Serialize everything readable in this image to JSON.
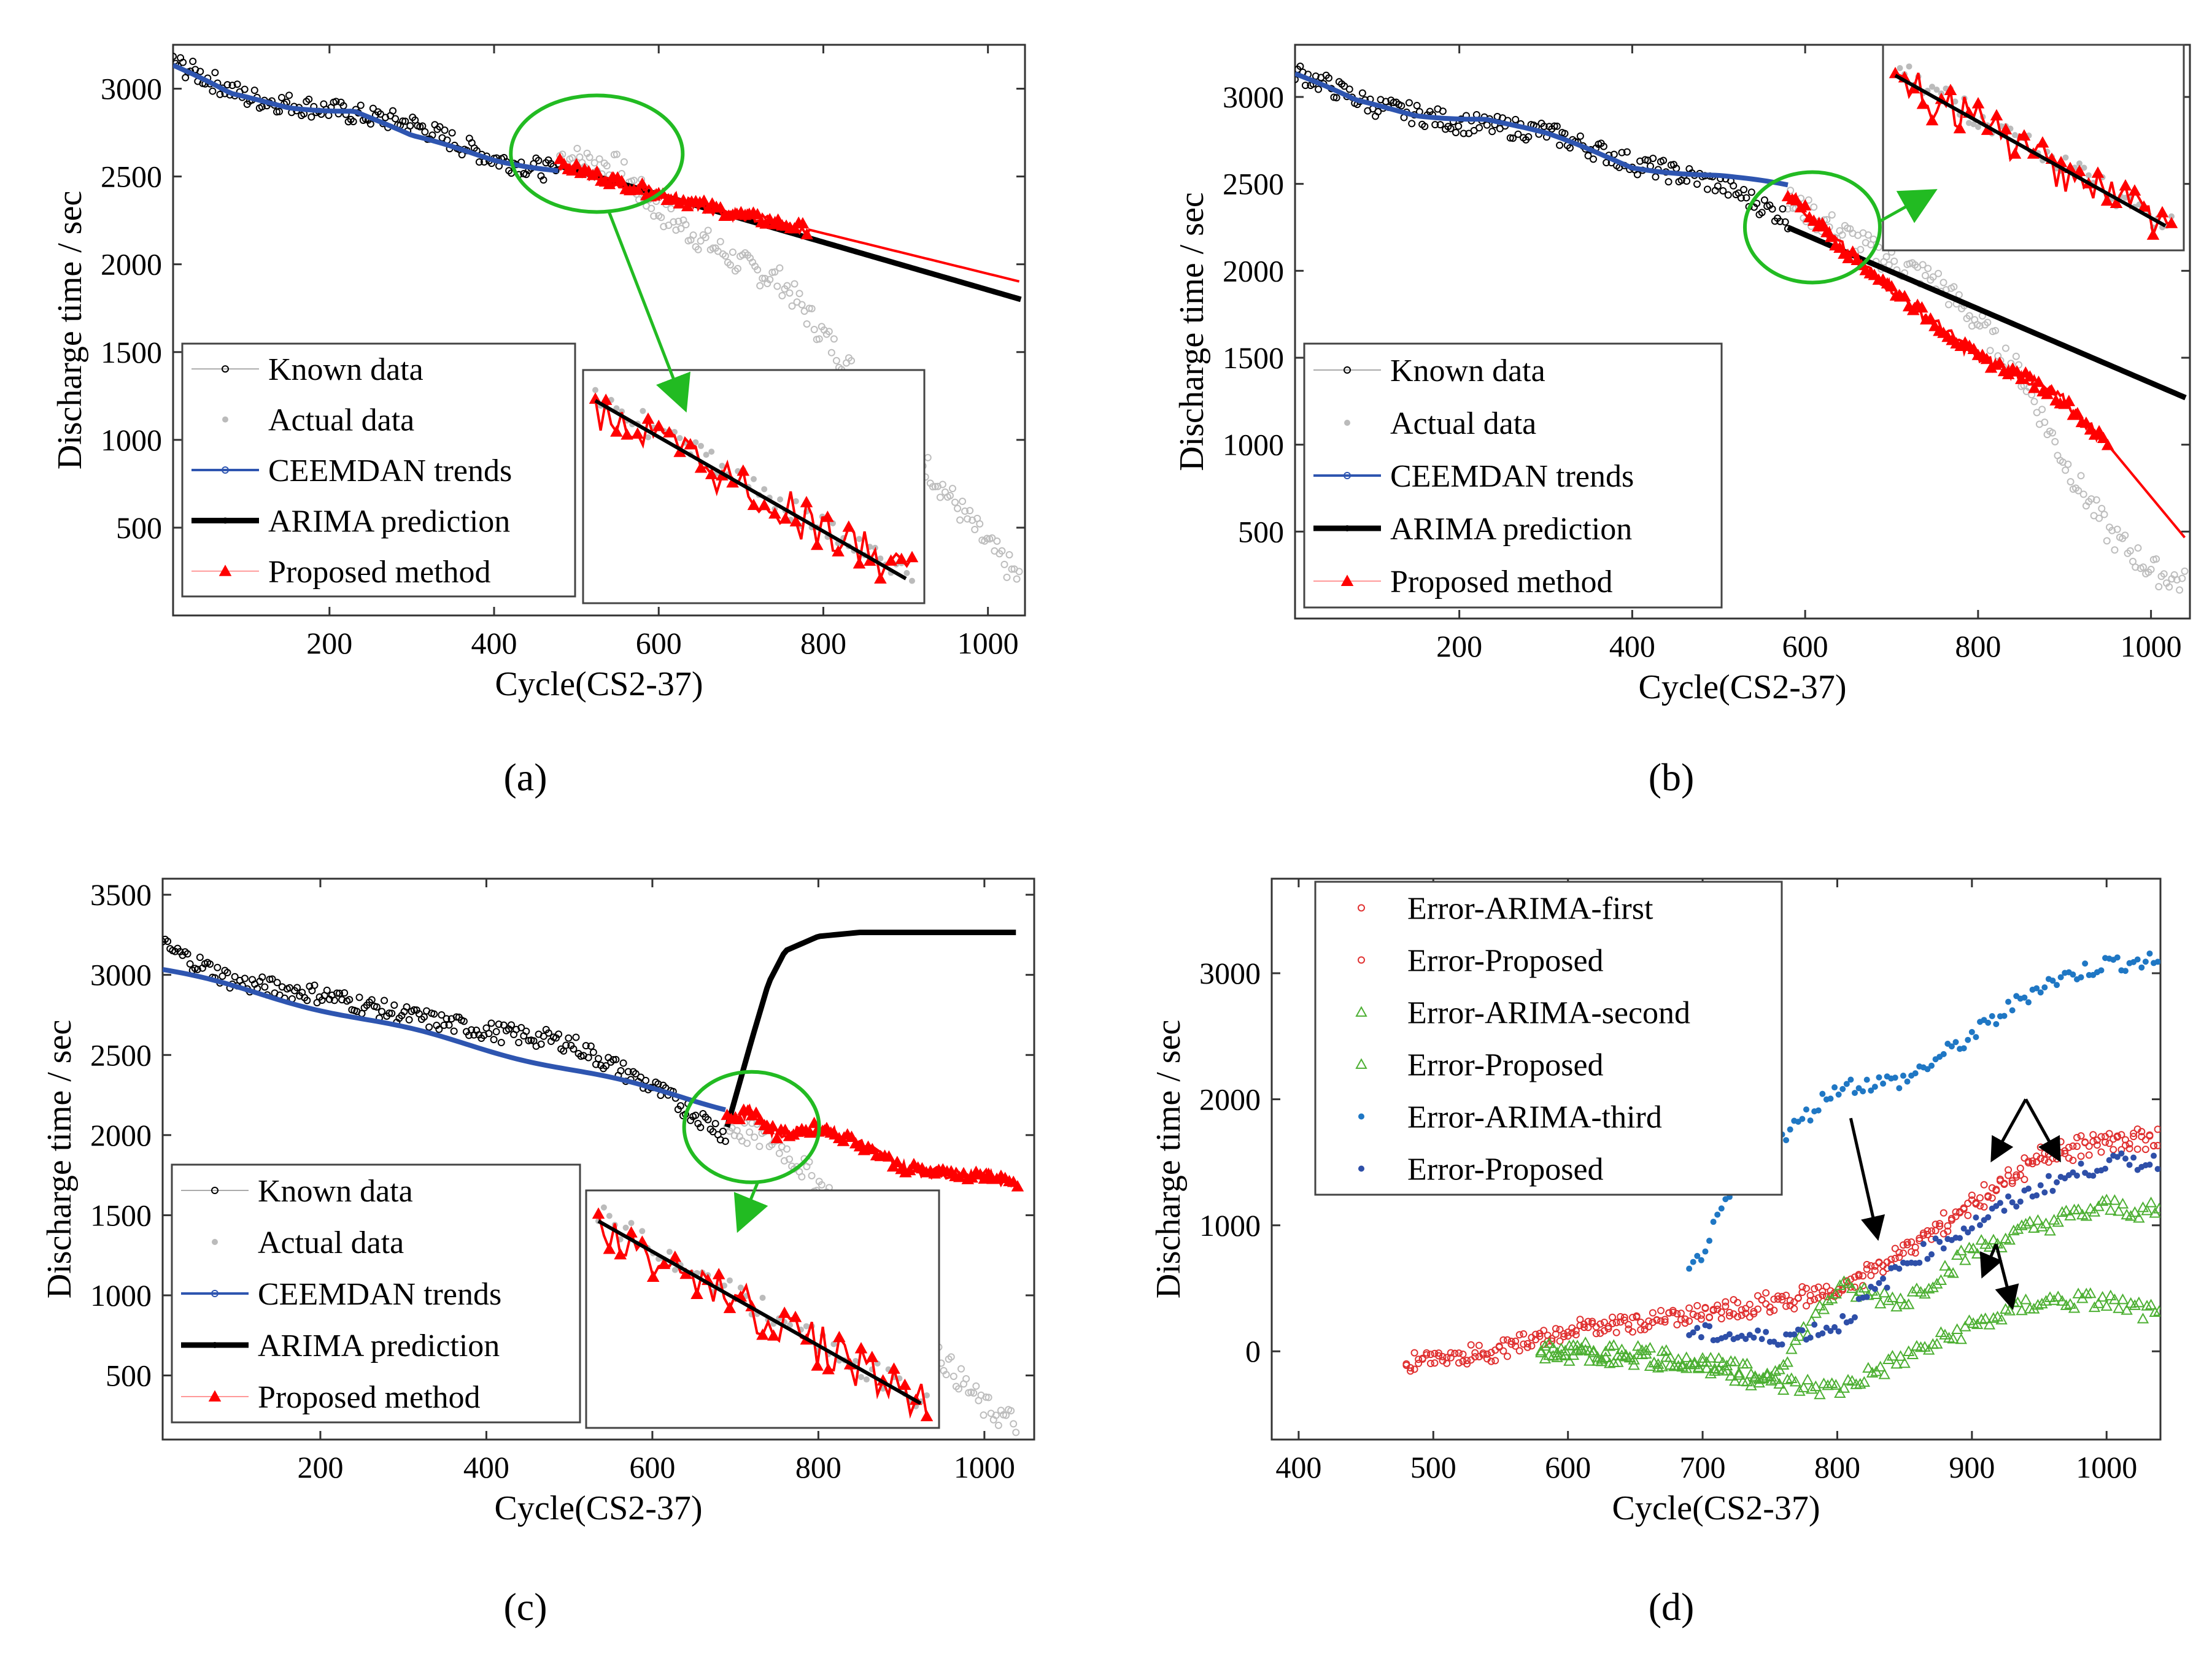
{
  "chart_data": [
    {
      "panel": "a",
      "caption": "(a)",
      "type": "line",
      "xlabel": "Cycle(CS2-37)",
      "ylabel": "Discharge time / sec",
      "xlim": [
        10,
        1045
      ],
      "ylim": [
        0,
        3250
      ],
      "xticks": [
        200,
        400,
        600,
        800,
        1000
      ],
      "yticks": [
        500,
        1000,
        1500,
        2000,
        2500,
        3000
      ],
      "legend": [
        "Known data",
        "Actual data",
        "CEEMDAN trends",
        "ARIMA prediction",
        "Proposed method"
      ],
      "legend_location": "bottom-left",
      "prediction_start": 480,
      "series": [
        {
          "name": "Known data",
          "color": "#000000",
          "x": [
            10,
            100,
            200,
            300,
            400,
            480
          ],
          "y": [
            3150,
            2950,
            2880,
            2800,
            2600,
            2520
          ]
        },
        {
          "name": "Actual data",
          "color": "#bdbdbd",
          "x": [
            480,
            550,
            600,
            650,
            700,
            750,
            800,
            850,
            900,
            950,
            1000,
            1040
          ],
          "y": [
            2620,
            2550,
            2300,
            2150,
            2000,
            1900,
            1600,
            1300,
            1000,
            700,
            400,
            200
          ]
        },
        {
          "name": "CEEMDAN trends",
          "color": "#2e55b0",
          "x": [
            10,
            80,
            150,
            230,
            300,
            400,
            480
          ],
          "y": [
            3130,
            2960,
            2900,
            2880,
            2720,
            2600,
            2540
          ]
        },
        {
          "name": "ARIMA prediction",
          "color": "#000000",
          "x": [
            480,
            1040
          ],
          "y": [
            2560,
            1800
          ]
        },
        {
          "name": "Proposed method",
          "color": "#ff0000",
          "x": [
            480,
            600,
            700,
            780,
            1040
          ],
          "y": [
            2570,
            2400,
            2280,
            2200,
            1900
          ]
        }
      ]
    },
    {
      "panel": "b",
      "caption": "(b)",
      "type": "line",
      "xlabel": "Cycle(CS2-37)",
      "ylabel": "Discharge time / sec",
      "xlim": [
        10,
        1045
      ],
      "ylim": [
        0,
        3300
      ],
      "xticks": [
        200,
        400,
        600,
        800,
        1000
      ],
      "yticks": [
        500,
        1000,
        1500,
        2000,
        2500,
        3000
      ],
      "legend": [
        "Known data",
        "Actual data",
        "CEEMDAN trends",
        "ARIMA prediction",
        "Proposed method"
      ],
      "legend_location": "bottom-left",
      "prediction_start": 580,
      "series": [
        {
          "name": "Known data",
          "color": "#000000",
          "x": [
            10,
            100,
            200,
            300,
            400,
            500,
            580
          ],
          "y": [
            3150,
            2950,
            2850,
            2800,
            2620,
            2500,
            2300
          ]
        },
        {
          "name": "Actual data",
          "color": "#bdbdbd",
          "x": [
            580,
            650,
            700,
            750,
            800,
            850,
            900,
            950,
            1000,
            1040
          ],
          "y": [
            2400,
            2200,
            2050,
            1950,
            1700,
            1400,
            900,
            500,
            280,
            200
          ]
        },
        {
          "name": "CEEMDAN trends",
          "color": "#2e55b0",
          "x": [
            10,
            80,
            150,
            230,
            300,
            400,
            500,
            580
          ],
          "y": [
            3130,
            2970,
            2900,
            2880,
            2780,
            2600,
            2550,
            2480
          ]
        },
        {
          "name": "ARIMA prediction",
          "color": "#000000",
          "x": [
            580,
            1040
          ],
          "y": [
            2250,
            1270
          ]
        },
        {
          "name": "Proposed method",
          "color": "#ff0000",
          "x": [
            580,
            650,
            700,
            750,
            800,
            850,
            900,
            950,
            1040
          ],
          "y": [
            2450,
            2100,
            1900,
            1700,
            1500,
            1400,
            1250,
            1000,
            460
          ]
        }
      ]
    },
    {
      "panel": "c",
      "caption": "(c)",
      "type": "line",
      "xlabel": "Cycle(CS2-37)",
      "ylabel": "Discharge time / sec",
      "xlim": [
        10,
        1060
      ],
      "ylim": [
        100,
        3600
      ],
      "xticks": [
        200,
        400,
        600,
        800,
        1000
      ],
      "yticks": [
        500,
        1000,
        1500,
        2000,
        2500,
        3000,
        3500
      ],
      "legend": [
        "Known data",
        "Actual data",
        "CEEMDAN trends",
        "ARIMA prediction",
        "Proposed method"
      ],
      "legend_location": "bottom-left",
      "prediction_start": 690,
      "series": [
        {
          "name": "Known data",
          "color": "#000000",
          "x": [
            10,
            100,
            200,
            300,
            400,
            500,
            600,
            690
          ],
          "y": [
            3180,
            2950,
            2880,
            2750,
            2650,
            2580,
            2300,
            2000
          ]
        },
        {
          "name": "Actual data",
          "color": "#bdbdbd",
          "x": [
            690,
            750,
            800,
            850,
            900,
            950,
            1000,
            1040
          ],
          "y": [
            2050,
            1950,
            1700,
            1400,
            1000,
            600,
            300,
            200
          ]
        },
        {
          "name": "CEEMDAN trends",
          "color": "#2e55b0",
          "x": [
            10,
            690
          ],
          "y": [
            3030,
            2170
          ]
        },
        {
          "name": "ARIMA prediction",
          "color": "#000000",
          "x": [
            690,
            720,
            740,
            760,
            800,
            850,
            1040
          ],
          "y": [
            2050,
            2600,
            2950,
            3150,
            3240,
            3265,
            3265
          ]
        },
        {
          "name": "Proposed method",
          "color": "#ff0000",
          "x": [
            690,
            720,
            750,
            800,
            850,
            900,
            950,
            1000,
            1040
          ],
          "y": [
            2100,
            2150,
            2000,
            2050,
            1950,
            1800,
            1760,
            1750,
            1700
          ]
        }
      ]
    },
    {
      "panel": "d",
      "caption": "(d)",
      "type": "scatter",
      "xlabel": "Cycle(CS2-37)",
      "ylabel": "Discharge time / sec",
      "xlim": [
        380,
        1040
      ],
      "ylim": [
        -700,
        3750
      ],
      "xticks": [
        400,
        500,
        600,
        700,
        800,
        900,
        1000
      ],
      "yticks": [
        0,
        1000,
        2000,
        3000
      ],
      "legend": [
        "Error-ARIMA-first",
        "Error-Proposed",
        "Error-ARIMA-second",
        "Error-Proposed",
        "Error-ARIMA-third",
        "Error-Proposed"
      ],
      "legend_location": "top-left",
      "series": [
        {
          "name": "Error-ARIMA-first",
          "color": "#e03030",
          "x": [
            480,
            550,
            600,
            700,
            800,
            850,
            900,
            950,
            1000,
            1040
          ],
          "y": [
            -100,
            0,
            150,
            300,
            500,
            800,
            1200,
            1550,
            1700,
            1700
          ]
        },
        {
          "name": "Error-Proposed",
          "color": "#e03030",
          "x": [
            480,
            550,
            600,
            700,
            800,
            850,
            900,
            950,
            1000,
            1040
          ],
          "y": [
            -80,
            20,
            180,
            280,
            450,
            780,
            1150,
            1500,
            1650,
            1650
          ]
        },
        {
          "name": "Error-ARIMA-second",
          "color": "#4caf32",
          "x": [
            580,
            650,
            700,
            750,
            800,
            850,
            900,
            950,
            1000,
            1040
          ],
          "y": [
            0,
            0,
            -100,
            -200,
            500,
            400,
            800,
            1000,
            1150,
            1100
          ]
        },
        {
          "name": "Error-Proposed",
          "color": "#4caf32",
          "x": [
            580,
            650,
            700,
            750,
            800,
            850,
            900,
            950,
            1000,
            1040
          ],
          "y": [
            0,
            -50,
            -100,
            -250,
            -300,
            -50,
            200,
            400,
            400,
            280
          ]
        },
        {
          "name": "Error-ARIMA-third",
          "color": "#1f77c4",
          "x": [
            690,
            720,
            760,
            800,
            850,
            900,
            950,
            1000,
            1040
          ],
          "y": [
            600,
            1200,
            1700,
            2100,
            2150,
            2500,
            2900,
            3080,
            3100
          ]
        },
        {
          "name": "Error-Proposed",
          "color": "#2e4fa8",
          "x": [
            690,
            750,
            800,
            850,
            900,
            950,
            1000,
            1040
          ],
          "y": [
            150,
            100,
            200,
            700,
            1000,
            1300,
            1500,
            1500
          ]
        }
      ]
    }
  ]
}
